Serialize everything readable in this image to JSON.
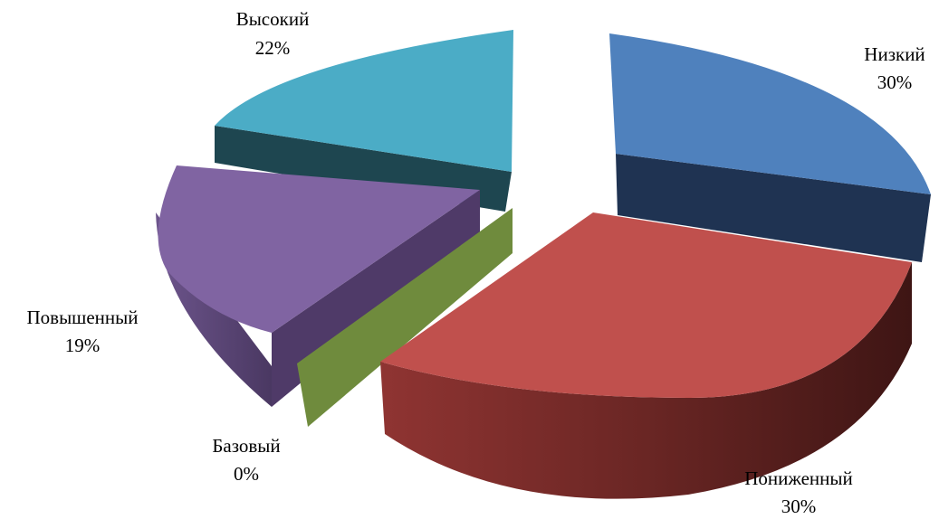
{
  "chart_data": {
    "type": "pie",
    "style": "3d-exploded",
    "title": "",
    "categories": [
      "Низкий",
      "Пониженный",
      "Базовый",
      "Повышенный",
      "Высокий"
    ],
    "values": [
      30,
      30,
      0,
      19,
      22
    ],
    "value_labels": [
      "30%",
      "30%",
      "0%",
      "19%",
      "22%"
    ],
    "unit": "%",
    "colors": [
      "#4f81bd",
      "#c0504d",
      "#6f8b3d",
      "#8064a2",
      "#4bacc6"
    ],
    "side_colors": [
      "#1f3352",
      "#5a1f1e",
      "#4f6a2a",
      "#56406e",
      "#1e4650"
    ],
    "legend": "none",
    "data_labels": "outside"
  }
}
